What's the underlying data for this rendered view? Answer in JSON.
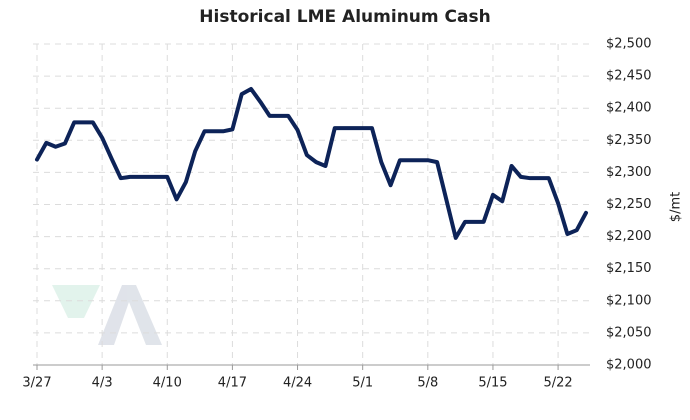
{
  "chart_data": {
    "type": "line",
    "title": "Historical LME Aluminum Cash",
    "y_label": "$/mt",
    "categories": [
      "3/27",
      null,
      null,
      null,
      null,
      null,
      null,
      "4/3",
      null,
      null,
      null,
      null,
      null,
      null,
      "4/10",
      null,
      null,
      null,
      null,
      null,
      null,
      "4/17",
      null,
      null,
      null,
      null,
      null,
      null,
      "4/24",
      null,
      null,
      null,
      null,
      null,
      null,
      "5/1",
      null,
      null,
      null,
      null,
      null,
      null,
      "5/8",
      null,
      null,
      null,
      null,
      null,
      null,
      "5/15",
      null,
      null,
      null,
      null,
      null,
      null,
      "5/22",
      null,
      null,
      null
    ],
    "series": [
      {
        "name": "LME Aluminum Cash",
        "color": "#0d2358",
        "values": [
          2320,
          2346,
          2340,
          2345,
          2378,
          2378,
          2378,
          2354,
          2322,
          2291,
          2293,
          2293,
          2293,
          2293,
          2293,
          2258,
          2285,
          2333,
          2364,
          2364,
          2364,
          2367,
          2422,
          2430,
          2410,
          2388,
          2388,
          2388,
          2366,
          2327,
          2316,
          2310,
          2369,
          2369,
          2369,
          2369,
          2369,
          2316,
          2280,
          2319,
          2319,
          2319,
          2319,
          2316,
          2257,
          2198,
          2223,
          2223,
          2223,
          2265,
          2255,
          2310,
          2293,
          2291,
          2291,
          2291,
          2252,
          2204,
          2210,
          2237
        ]
      }
    ],
    "ylim": [
      2000,
      2500
    ],
    "yticks": [
      {
        "value": 2000,
        "label": "$2,000"
      },
      {
        "value": 2050,
        "label": "$2,050"
      },
      {
        "value": 2100,
        "label": "$2,100"
      },
      {
        "value": 2150,
        "label": "$2,150"
      },
      {
        "value": 2200,
        "label": "$2,200"
      },
      {
        "value": 2250,
        "label": "$2,250"
      },
      {
        "value": 2300,
        "label": "$2,300"
      },
      {
        "value": 2350,
        "label": "$2,350"
      },
      {
        "value": 2400,
        "label": "$2,400"
      },
      {
        "value": 2450,
        "label": "$2,450"
      },
      {
        "value": 2500,
        "label": "$2,500"
      }
    ],
    "grid": true
  }
}
